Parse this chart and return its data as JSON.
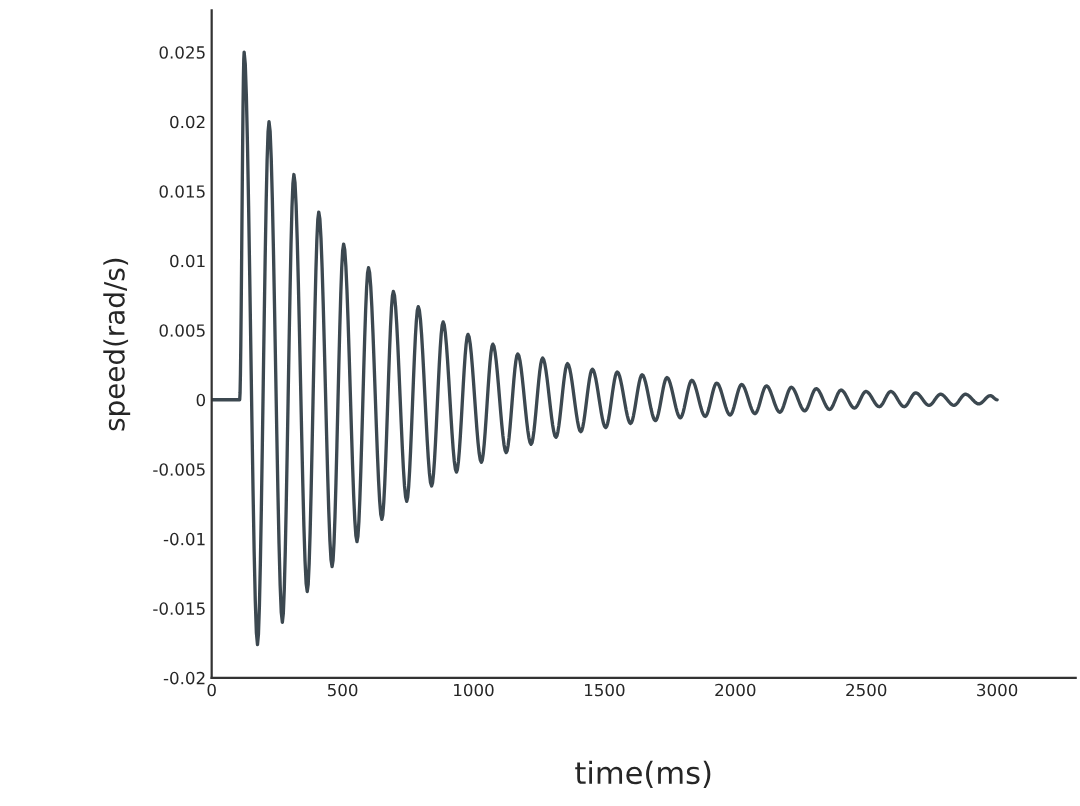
{
  "chart_data": {
    "type": "line",
    "xlabel": "time(ms)",
    "ylabel": "speed(rad/s)",
    "xlim": [
      0,
      3300
    ],
    "xticks": [
      0,
      500,
      1000,
      1500,
      2000,
      2500,
      3000
    ],
    "ylim": [
      -0.02,
      0.028
    ],
    "yticks": [
      -0.02,
      -0.015,
      -0.01,
      -0.005,
      0,
      0.005,
      0.01,
      0.015,
      0.02,
      0.025
    ],
    "grid": false,
    "legend": false,
    "marker": "none",
    "line_style": "solid",
    "series": [
      {
        "color": "#3c4850",
        "x": [
          0,
          107,
          124,
          175,
          219,
          270,
          314,
          365,
          409,
          460,
          504,
          555,
          599,
          650,
          694,
          745,
          789,
          840,
          884,
          935,
          979,
          1030,
          1074,
          1125,
          1169,
          1220,
          1264,
          1315,
          1359,
          1410,
          1454,
          1505,
          1549,
          1600,
          1644,
          1695,
          1739,
          1790,
          1834,
          1885,
          1929,
          1980,
          2024,
          2075,
          2119,
          2170,
          2214,
          2265,
          2309,
          2360,
          2404,
          2455,
          2499,
          2550,
          2594,
          2645,
          2689,
          2740,
          2784,
          2835,
          2879,
          2930,
          2974,
          3000
        ],
        "values": [
          0,
          0,
          0.025,
          -0.0176,
          0.02,
          -0.016,
          0.0162,
          -0.0138,
          0.0135,
          -0.012,
          0.0112,
          -0.0102,
          0.0095,
          -0.0086,
          0.0078,
          -0.0073,
          0.0067,
          -0.0062,
          0.0056,
          -0.0052,
          0.0047,
          -0.0045,
          0.004,
          -0.0038,
          0.0033,
          -0.0032,
          0.003,
          -0.0027,
          0.0026,
          -0.0023,
          0.0022,
          -0.002,
          0.002,
          -0.0017,
          0.0018,
          -0.0015,
          0.0016,
          -0.0013,
          0.0014,
          -0.0012,
          0.0012,
          -0.0011,
          0.0011,
          -0.001,
          0.001,
          -0.0009,
          0.0009,
          -0.0008,
          0.0008,
          -0.0007,
          0.0007,
          -0.0006,
          0.0006,
          -0.0005,
          0.0006,
          -0.0005,
          0.0005,
          -0.0004,
          0.0004,
          -0.0004,
          0.0004,
          -0.0003,
          0.0003,
          0
        ]
      }
    ]
  }
}
